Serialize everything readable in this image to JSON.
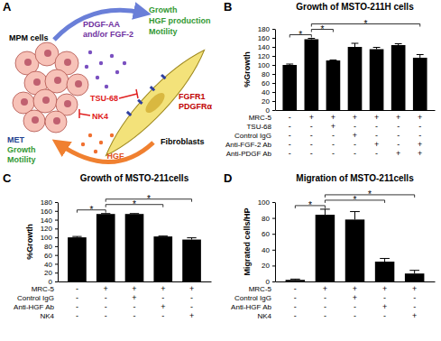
{
  "diagram": {
    "panel": "A",
    "mpm_cells": "MPM cells",
    "fibroblasts": "Fibroblasts",
    "signal_to_fibroblast": [
      "PDGF-AA",
      "and/or FGF-2"
    ],
    "fibroblast_response": [
      "Growth",
      "HGF production",
      "Motility"
    ],
    "inhibitor_receptor": "TSU-68",
    "receptor": [
      "FGFR1",
      "PDGFRα"
    ],
    "signal_to_mpm": "HGF",
    "inhibitor_met": "NK4",
    "mpm_receptor": "MET",
    "mpm_response": [
      "Growth",
      "Motility"
    ]
  },
  "chart_data": [
    {
      "type": "bar",
      "panel": "B",
      "title": "Growth of MSTO-211H cells",
      "y_label": "%Growth",
      "categories": [
        null,
        null,
        null,
        null,
        null,
        null,
        null
      ],
      "values": [
        100,
        157,
        110,
        140,
        135,
        144,
        116
      ],
      "errors": [
        2,
        2,
        1,
        8,
        4,
        3,
        7
      ],
      "color": "#000000",
      "ylim": [
        0,
        180
      ],
      "yticks": [
        0,
        20,
        40,
        60,
        80,
        100,
        120,
        140,
        160,
        180
      ],
      "conditions": [
        {
          "label": "MRC-5",
          "signs": [
            "-",
            "+",
            "+",
            "+",
            "+",
            "+",
            "+"
          ]
        },
        {
          "label": "TSU-68",
          "signs": [
            "-",
            "-",
            "+",
            "-",
            "-",
            "-",
            "-"
          ]
        },
        {
          "label": "Control IgG",
          "signs": [
            "-",
            "-",
            "-",
            "+",
            "-",
            "-",
            "-"
          ]
        },
        {
          "label": "Anti-FGF-2 Ab",
          "signs": [
            "-",
            "-",
            "-",
            "-",
            "+",
            "-",
            "+"
          ]
        },
        {
          "label": "Anti-PDGF Ab",
          "signs": [
            "-",
            "-",
            "-",
            "-",
            "-",
            "+",
            "+"
          ]
        }
      ],
      "annotations": [
        {
          "from": 0,
          "to": 1,
          "label": "*"
        },
        {
          "from": 1,
          "to": 2,
          "label": "*"
        },
        {
          "from": 1,
          "to": 6,
          "label": "*"
        }
      ]
    },
    {
      "type": "bar",
      "panel": "C",
      "title": "Growth of MSTO-211cells",
      "y_label": "%Growth",
      "categories": [
        null,
        null,
        null,
        null,
        null
      ],
      "values": [
        100,
        153,
        153,
        102,
        95
      ],
      "errors": [
        2,
        1,
        1,
        1,
        4
      ],
      "color": "#000000",
      "ylim": [
        0,
        180
      ],
      "yticks": [
        0,
        20,
        40,
        60,
        80,
        100,
        120,
        140,
        160,
        180
      ],
      "conditions": [
        {
          "label": "MRC-5",
          "signs": [
            "-",
            "+",
            "+",
            "+",
            "+"
          ]
        },
        {
          "label": "Control IgG",
          "signs": [
            "-",
            "-",
            "+",
            "-",
            "-"
          ]
        },
        {
          "label": "Anti-HGF Ab",
          "signs": [
            "-",
            "-",
            "-",
            "+",
            "-"
          ]
        },
        {
          "label": "NK4",
          "signs": [
            "-",
            "-",
            "-",
            "-",
            "+"
          ]
        }
      ],
      "annotations": [
        {
          "from": 0,
          "to": 1,
          "label": "*"
        },
        {
          "from": 1,
          "to": 3,
          "label": "*"
        },
        {
          "from": 1,
          "to": 4,
          "label": "*"
        }
      ]
    },
    {
      "type": "bar",
      "panel": "D",
      "title": "Migration of MSTO-211cells",
      "y_label": "Migrated cells/HP",
      "categories": [
        null,
        null,
        null,
        null,
        null
      ],
      "values": [
        2,
        84,
        78,
        25,
        10
      ],
      "errors": [
        1,
        7,
        10,
        4,
        4
      ],
      "color": "#000000",
      "ylim": [
        0,
        100
      ],
      "yticks": [
        0,
        20,
        40,
        60,
        80,
        100
      ],
      "conditions": [
        {
          "label": "MRC-5",
          "signs": [
            "-",
            "+",
            "+",
            "+",
            "+"
          ]
        },
        {
          "label": "Control IgG",
          "signs": [
            "-",
            "-",
            "+",
            "-",
            "-"
          ]
        },
        {
          "label": "Anti-HGF Ab",
          "signs": [
            "-",
            "-",
            "-",
            "+",
            "-"
          ]
        },
        {
          "label": "NK4",
          "signs": [
            "-",
            "-",
            "-",
            "-",
            "+"
          ]
        }
      ],
      "annotations": [
        {
          "from": 0,
          "to": 1,
          "label": "*"
        },
        {
          "from": 1,
          "to": 3,
          "label": "*"
        },
        {
          "from": 1,
          "to": 4,
          "label": "*"
        }
      ]
    }
  ]
}
